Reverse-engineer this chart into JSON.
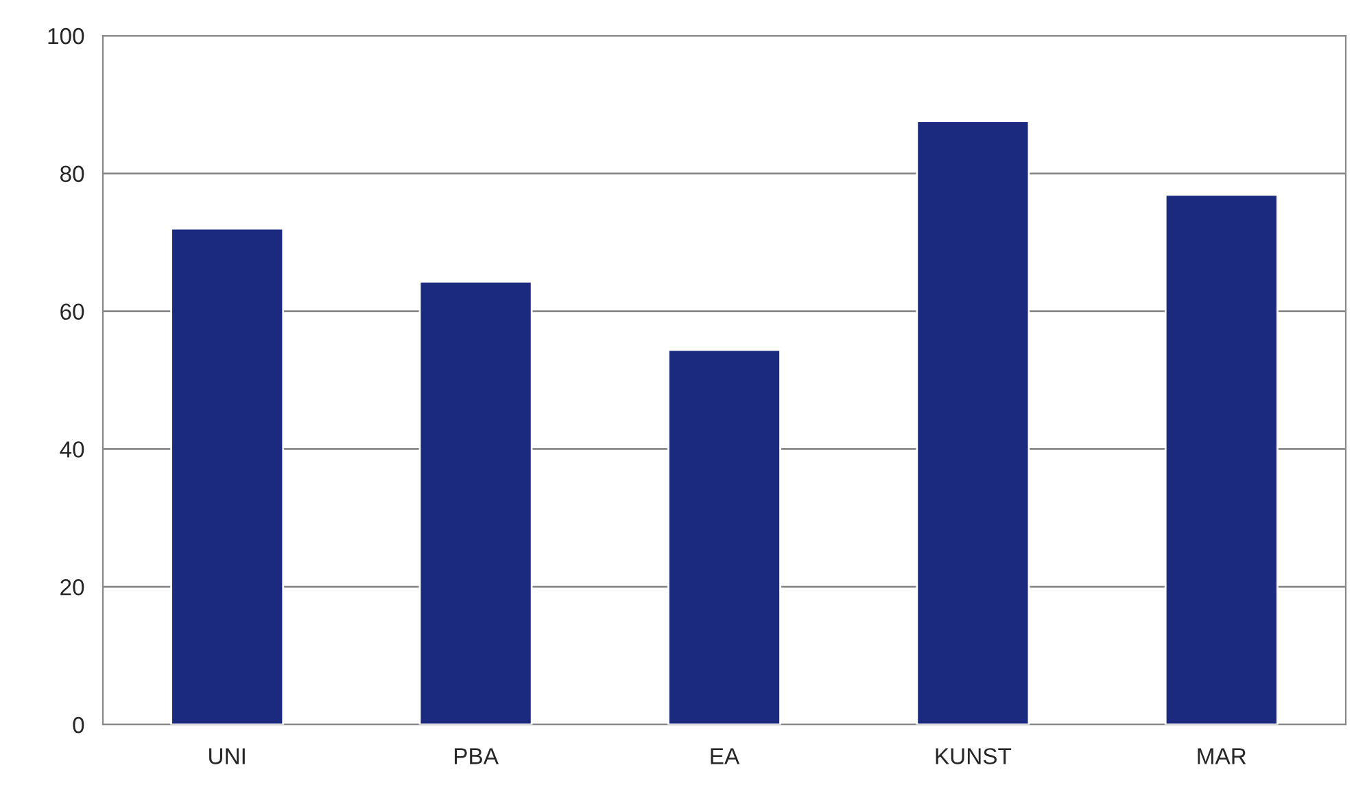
{
  "chart_data": {
    "type": "bar",
    "categories": [
      "UNI",
      "PBA",
      "EA",
      "KUNST",
      "MAR"
    ],
    "values": [
      72,
      64.3,
      54.4,
      87.6,
      76.9
    ],
    "color": "#1b2a7e",
    "ylim": [
      0,
      100
    ],
    "yticks": [
      0,
      20,
      40,
      60,
      80,
      100
    ],
    "grid": "y",
    "legend": false
  }
}
